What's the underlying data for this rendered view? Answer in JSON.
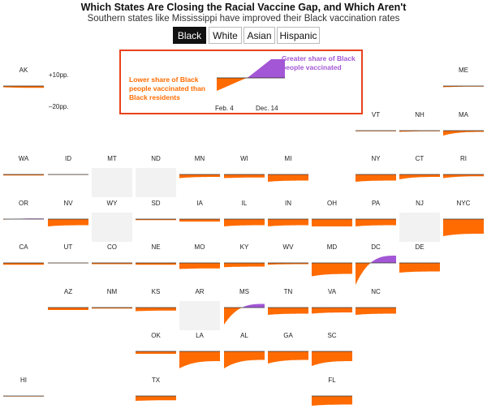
{
  "title": "Which States Are Closing the Racial Vaccine Gap, and Which Aren't",
  "subtitle": "Southern states like Mississippi have improved their Black vaccination rates",
  "tabs": [
    {
      "label": "Black",
      "active": true
    },
    {
      "label": "White",
      "active": false
    },
    {
      "label": "Asian",
      "active": false
    },
    {
      "label": "Hispanic",
      "active": false
    }
  ],
  "legend": {
    "negative_label": "Lower share of Black people vaccinated than Black residents",
    "positive_label": "Greater share of Black people vaccinated",
    "date_start": "Feb. 4",
    "date_end": "Dec. 14",
    "scale_top": "+10pp.",
    "scale_bottom": "–20pp."
  },
  "colors": {
    "negative": "#ff6b00",
    "positive": "#a357d6",
    "no_data": "#f2f2f2",
    "legend_border": "#e8421c"
  },
  "chart_data": {
    "type": "area",
    "x_range": [
      "Feb. 4",
      "Dec. 14"
    ],
    "units": "percentage points",
    "scale": [
      -20,
      10
    ],
    "states": [
      {
        "abbr": "AK",
        "start": -1,
        "end": -1.5
      },
      {
        "abbr": "ME",
        "start": -1,
        "end": -0.5
      },
      {
        "abbr": "VT",
        "start": -0.5,
        "end": -0.5
      },
      {
        "abbr": "NH",
        "start": -1,
        "end": -0.5
      },
      {
        "abbr": "MA",
        "start": -4,
        "end": -1
      },
      {
        "abbr": "WA",
        "start": -0.8,
        "end": -0.8
      },
      {
        "abbr": "ID",
        "start": -0.3,
        "end": -0.3
      },
      {
        "abbr": "MT",
        "no_data": true
      },
      {
        "abbr": "ND",
        "no_data": true
      },
      {
        "abbr": "MN",
        "start": -3,
        "end": -2
      },
      {
        "abbr": "WI",
        "start": -3,
        "end": -2.5
      },
      {
        "abbr": "MI",
        "start": -6,
        "end": -5
      },
      {
        "abbr": "NY",
        "start": -6,
        "end": -5
      },
      {
        "abbr": "CT",
        "start": -4,
        "end": -2
      },
      {
        "abbr": "RI",
        "start": -3,
        "end": -1.5
      },
      {
        "abbr": "OR",
        "start": -0.5,
        "end": 0.5
      },
      {
        "abbr": "NV",
        "start": -6,
        "end": -5
      },
      {
        "abbr": "WY",
        "no_data": true
      },
      {
        "abbr": "SD",
        "start": -0.8,
        "end": -0.8
      },
      {
        "abbr": "IA",
        "start": -2,
        "end": -2
      },
      {
        "abbr": "IL",
        "start": -6,
        "end": -5
      },
      {
        "abbr": "IN",
        "start": -6,
        "end": -5
      },
      {
        "abbr": "OH",
        "start": -6,
        "end": -6
      },
      {
        "abbr": "PA",
        "start": -6,
        "end": -5
      },
      {
        "abbr": "NJ",
        "no_data": true
      },
      {
        "abbr": "NYC",
        "start": -14,
        "end": -12
      },
      {
        "abbr": "CA",
        "start": -1.5,
        "end": -1.5
      },
      {
        "abbr": "UT",
        "start": -0.3,
        "end": -0.3
      },
      {
        "abbr": "CO",
        "start": -1,
        "end": -1
      },
      {
        "abbr": "NE",
        "start": -1.5,
        "end": -1.5
      },
      {
        "abbr": "MO",
        "start": -5,
        "end": -4.5
      },
      {
        "abbr": "KY",
        "start": -3.5,
        "end": -3
      },
      {
        "abbr": "WV",
        "start": -1.5,
        "end": -1
      },
      {
        "abbr": "MD",
        "start": -11,
        "end": -9
      },
      {
        "abbr": "DC",
        "start": -18,
        "end": 6
      },
      {
        "abbr": "DE",
        "start": -8,
        "end": -7
      },
      {
        "abbr": "AZ",
        "start": -2,
        "end": -2
      },
      {
        "abbr": "NM",
        "start": -0.8,
        "end": -0.8
      },
      {
        "abbr": "KS",
        "start": -3,
        "end": -2.5
      },
      {
        "abbr": "AR",
        "no_data": true
      },
      {
        "abbr": "MS",
        "start": -14,
        "end": 3
      },
      {
        "abbr": "TN",
        "start": -6,
        "end": -5
      },
      {
        "abbr": "VA",
        "start": -5,
        "end": -4
      },
      {
        "abbr": "NC",
        "start": -6,
        "end": -5
      },
      {
        "abbr": "OK",
        "start": -2,
        "end": -2
      },
      {
        "abbr": "LA",
        "start": -14,
        "end": -8
      },
      {
        "abbr": "AL",
        "start": -14,
        "end": -7
      },
      {
        "abbr": "GA",
        "start": -10,
        "end": -7
      },
      {
        "abbr": "SC",
        "start": -12,
        "end": -8
      },
      {
        "abbr": "HI",
        "start": -0.4,
        "end": -0.4
      },
      {
        "abbr": "TX",
        "start": -4,
        "end": -3.5
      },
      {
        "abbr": "FL",
        "start": -8,
        "end": -7
      }
    ]
  }
}
